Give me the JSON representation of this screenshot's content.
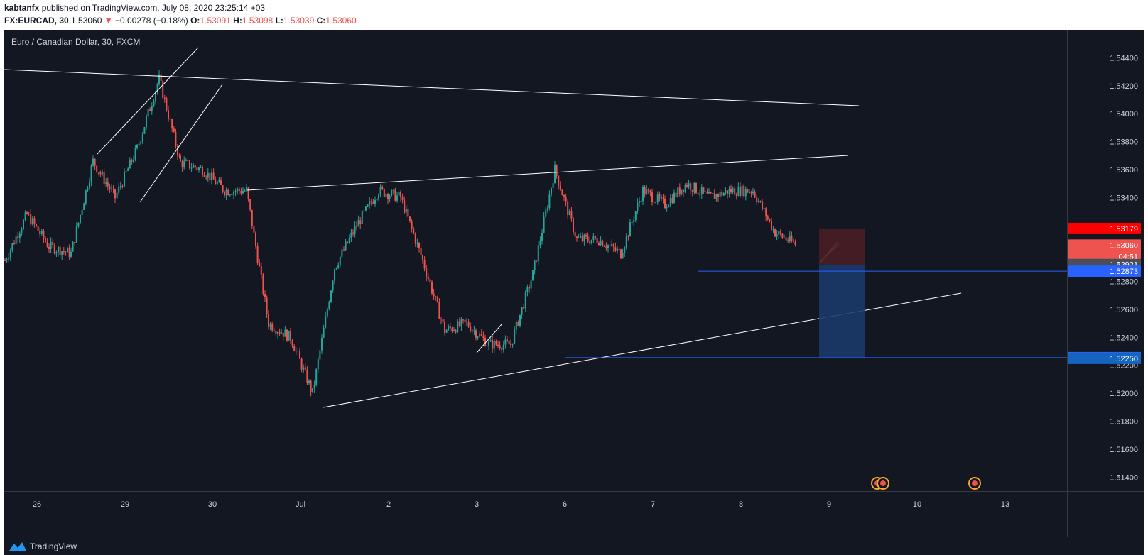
{
  "header": {
    "publisher": "kabtanfx",
    "published_text": "published on TradingView.com, July 08, 2020 23:25:14 +03",
    "symbol": "FX:EURCAD, 30",
    "last": "1.53060",
    "arrow": "▼",
    "change": "−0.00278 (−0.18%)",
    "o_label": "O:",
    "o_value": "1.53091",
    "h_label": "H:",
    "h_value": "1.53098",
    "l_label": "L:",
    "l_value": "1.53039",
    "c_label": "C:",
    "c_value": "1.53060"
  },
  "legend": "Euro / Canadian Dollar, 30, FXCM",
  "footer": {
    "brand": "TradingView"
  },
  "colors": {
    "background": "#131722",
    "up": "#26a69a",
    "down": "#ef5350",
    "text": "#d1d4dc",
    "line": "#ffffff",
    "target_line": "#2962ff"
  },
  "chart_data": {
    "type": "candlestick",
    "title": "Euro / Canadian Dollar, 30, FXCM",
    "y_axis": {
      "ylim": [
        1.513,
        1.546
      ],
      "ticks": [
        "1.54400",
        "1.54200",
        "1.54000",
        "1.53800",
        "1.53600",
        "1.53400",
        "1.53200",
        "1.53000",
        "1.52800",
        "1.52600",
        "1.52400",
        "1.52200",
        "1.52000",
        "1.51800",
        "1.51600",
        "1.51400"
      ]
    },
    "x_axis": {
      "labels": [
        "26",
        "29",
        "30",
        "Jul",
        "2",
        "3",
        "6",
        "7",
        "8",
        "9",
        "10",
        "13"
      ]
    },
    "price_path": [
      [
        "26",
        1.5295
      ],
      [
        "26",
        1.5328
      ],
      [
        "26",
        1.5305
      ],
      [
        "26",
        1.53
      ],
      [
        "29",
        1.5366
      ],
      [
        "29",
        1.534
      ],
      [
        "29",
        1.5375
      ],
      [
        "29",
        1.5425
      ],
      [
        "30",
        1.5365
      ],
      [
        "30",
        1.536
      ],
      [
        "30",
        1.5345
      ],
      [
        "30",
        1.5345
      ],
      [
        "Jul",
        1.525
      ],
      [
        "Jul",
        1.524
      ],
      [
        "Jul",
        1.52
      ],
      [
        "Jul",
        1.529
      ],
      [
        "2",
        1.532
      ],
      [
        "2",
        1.5345
      ],
      [
        "2",
        1.534
      ],
      [
        "2",
        1.5295
      ],
      [
        "3",
        1.5245
      ],
      [
        "3",
        1.525
      ],
      [
        "3",
        1.5235
      ],
      [
        "3",
        1.5235
      ],
      [
        "6",
        1.5285
      ],
      [
        "6",
        1.536
      ],
      [
        "6",
        1.531
      ],
      [
        "6",
        1.531
      ],
      [
        "7",
        1.53
      ],
      [
        "7",
        1.5345
      ],
      [
        "7",
        1.5335
      ],
      [
        "7",
        1.535
      ],
      [
        "8",
        1.534
      ],
      [
        "8",
        1.5345
      ],
      [
        "8",
        1.5345
      ],
      [
        "8",
        1.5315
      ],
      [
        "9",
        1.5306
      ]
    ],
    "price_labels": [
      {
        "value": 1.53179,
        "label": "1.53179",
        "color": "#ff0000"
      },
      {
        "value": 1.5306,
        "label": "1.53060",
        "color": "#ef5350"
      },
      {
        "value": 1.52977,
        "label": "04:51",
        "color": "#ef5350"
      },
      {
        "value": 1.52921,
        "label": "1.52921",
        "color": "#4a4e59"
      },
      {
        "value": 1.52873,
        "label": "1.52873",
        "color": "#2962ff"
      },
      {
        "value": 1.52255,
        "label": "1.52255",
        "color": "#2962ff"
      },
      {
        "value": 1.5225,
        "label": "1.52250",
        "color": "#1565c0"
      }
    ],
    "annotations": {
      "horizontal_levels": [
        1.52921,
        1.52255
      ],
      "short_position": {
        "entry": 1.52921,
        "stop": 1.53179,
        "target": 1.52255
      }
    }
  }
}
